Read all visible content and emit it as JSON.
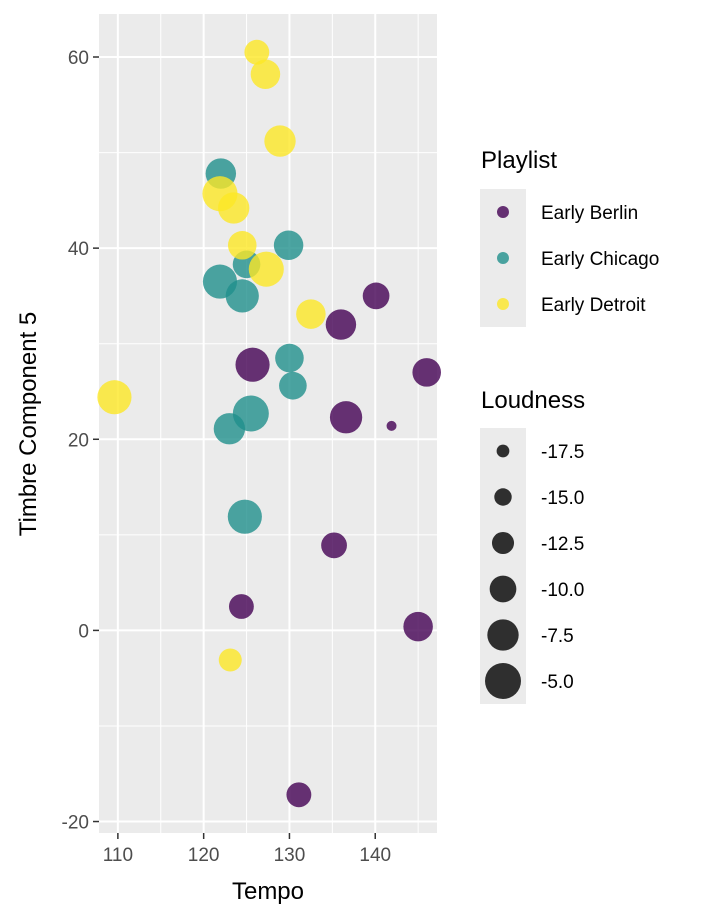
{
  "chart_data": {
    "type": "scatter",
    "xlabel": "Tempo",
    "ylabel": "Timbre Component 5",
    "xlim": [
      107.8,
      147.2
    ],
    "ylim": [
      -21.2,
      64.5
    ],
    "x_ticks": [
      110,
      120,
      130,
      140
    ],
    "y_ticks": [
      -20,
      0,
      20,
      40,
      60
    ],
    "grid": true,
    "legend_position": "right",
    "color_legend": {
      "title": "Playlist",
      "entries": [
        {
          "name": "Early Berlin",
          "color": "#440154"
        },
        {
          "name": "Early Chicago",
          "color": "#21908C"
        },
        {
          "name": "Early Detroit",
          "color": "#FDE725"
        }
      ]
    },
    "size_legend": {
      "title": "Loudness",
      "entries": [
        {
          "label": "-17.5",
          "value": -17.5
        },
        {
          "label": "-15.0",
          "value": -15.0
        },
        {
          "label": "-12.5",
          "value": -12.5
        },
        {
          "label": "-10.0",
          "value": -10.0
        },
        {
          "label": "-7.5",
          "value": -7.5
        },
        {
          "label": "-5.0",
          "value": -5.0
        }
      ]
    },
    "series": [
      {
        "name": "Early Berlin",
        "points": [
          {
            "x": 125.7,
            "y": 27.8,
            "loudness": -6.0
          },
          {
            "x": 136.0,
            "y": 32.0,
            "loudness": -8.0
          },
          {
            "x": 140.1,
            "y": 35.0,
            "loudness": -10.0
          },
          {
            "x": 146.0,
            "y": 27.0,
            "loudness": -9.0
          },
          {
            "x": 136.6,
            "y": 22.3,
            "loudness": -7.0
          },
          {
            "x": 141.9,
            "y": 21.4,
            "loudness": -19.0
          },
          {
            "x": 135.2,
            "y": 8.9,
            "loudness": -10.5
          },
          {
            "x": 124.4,
            "y": 2.5,
            "loudness": -11.0
          },
          {
            "x": 145.0,
            "y": 0.4,
            "loudness": -8.5
          },
          {
            "x": 131.1,
            "y": -17.2,
            "loudness": -11.0
          }
        ]
      },
      {
        "name": "Early Chicago",
        "points": [
          {
            "x": 122.0,
            "y": 47.8,
            "loudness": -8.0
          },
          {
            "x": 129.9,
            "y": 40.3,
            "loudness": -8.5
          },
          {
            "x": 125.0,
            "y": 38.3,
            "loudness": -9.5
          },
          {
            "x": 121.9,
            "y": 36.5,
            "loudness": -6.0
          },
          {
            "x": 124.5,
            "y": 35.0,
            "loudness": -6.5
          },
          {
            "x": 130.0,
            "y": 28.5,
            "loudness": -9.0
          },
          {
            "x": 130.4,
            "y": 25.6,
            "loudness": -9.5
          },
          {
            "x": 125.5,
            "y": 22.7,
            "loudness": -5.0
          },
          {
            "x": 123.0,
            "y": 21.1,
            "loudness": -7.5
          },
          {
            "x": 124.8,
            "y": 11.9,
            "loudness": -6.0
          }
        ]
      },
      {
        "name": "Early Detroit",
        "points": [
          {
            "x": 126.2,
            "y": 60.5,
            "loudness": -11.0
          },
          {
            "x": 127.2,
            "y": 58.2,
            "loudness": -8.5
          },
          {
            "x": 128.9,
            "y": 51.2,
            "loudness": -7.5
          },
          {
            "x": 121.9,
            "y": 45.7,
            "loudness": -5.5
          },
          {
            "x": 123.5,
            "y": 44.2,
            "loudness": -7.5
          },
          {
            "x": 124.5,
            "y": 40.3,
            "loudness": -9.0
          },
          {
            "x": 127.3,
            "y": 37.8,
            "loudness": -5.5
          },
          {
            "x": 132.5,
            "y": 33.1,
            "loudness": -8.5
          },
          {
            "x": 109.6,
            "y": 24.4,
            "loudness": -6.0
          },
          {
            "x": 123.1,
            "y": -3.1,
            "loudness": -12.0
          }
        ]
      }
    ]
  }
}
